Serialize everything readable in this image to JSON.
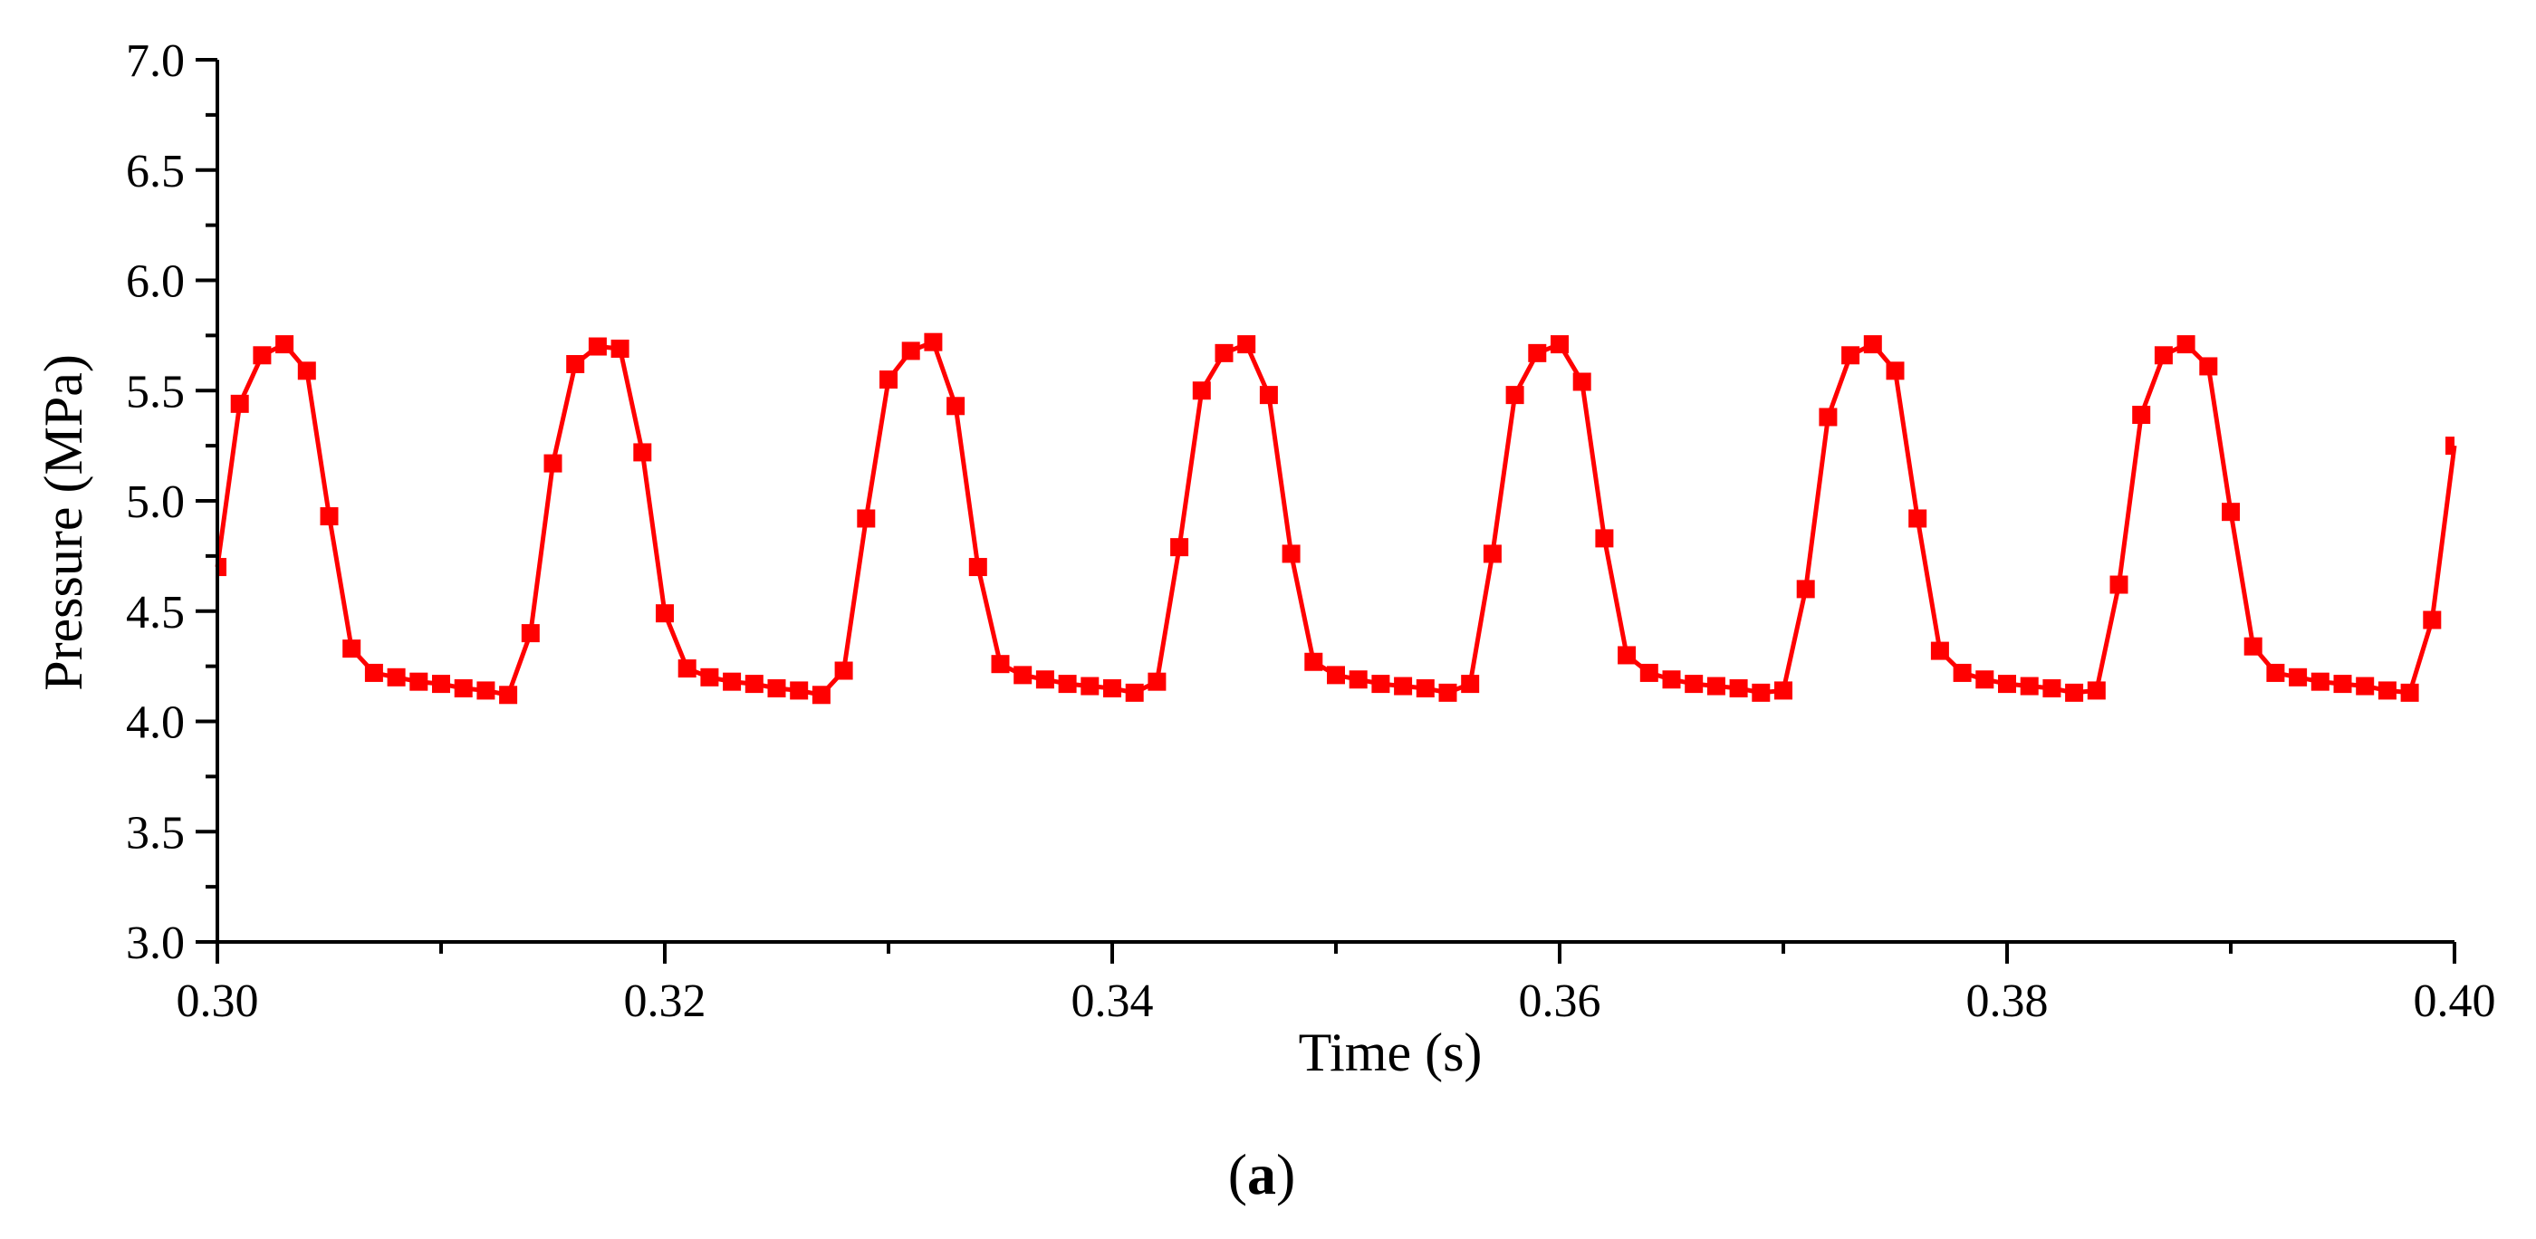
{
  "chart_data": {
    "type": "line",
    "title": "",
    "xlabel": "Time (s)",
    "ylabel": "Pressure (MPa)",
    "caption": {
      "open": "(",
      "letter": "a",
      "close": ")"
    },
    "xlim": [
      0.3,
      0.4
    ],
    "ylim": [
      3.0,
      7.0
    ],
    "x_ticks": [
      0.3,
      0.32,
      0.34,
      0.36,
      0.38,
      0.4
    ],
    "x_tick_labels": [
      "0.30",
      "0.32",
      "0.34",
      "0.36",
      "0.38",
      "0.40"
    ],
    "y_ticks": [
      3.0,
      3.5,
      4.0,
      4.5,
      5.0,
      5.5,
      6.0,
      6.5,
      7.0
    ],
    "y_tick_labels": [
      "3.0",
      "3.5",
      "4.0",
      "4.5",
      "5.0",
      "5.5",
      "6.0",
      "6.5",
      "7.0"
    ],
    "colors": {
      "series": "#ff0000",
      "axis": "#000000"
    },
    "legend": "none",
    "grid": false,
    "series": [
      {
        "name": "Pressure",
        "marker": "square",
        "x": [
          0.3,
          0.301,
          0.302,
          0.303,
          0.304,
          0.305,
          0.306,
          0.307,
          0.308,
          0.309,
          0.31,
          0.311,
          0.312,
          0.313,
          0.314,
          0.315,
          0.316,
          0.317,
          0.318,
          0.319,
          0.32,
          0.321,
          0.322,
          0.323,
          0.324,
          0.325,
          0.326,
          0.327,
          0.328,
          0.329,
          0.33,
          0.331,
          0.332,
          0.333,
          0.334,
          0.335,
          0.336,
          0.337,
          0.338,
          0.339,
          0.34,
          0.341,
          0.342,
          0.343,
          0.344,
          0.345,
          0.346,
          0.347,
          0.348,
          0.349,
          0.35,
          0.351,
          0.352,
          0.353,
          0.354,
          0.355,
          0.356,
          0.357,
          0.358,
          0.359,
          0.36,
          0.361,
          0.362,
          0.363,
          0.364,
          0.365,
          0.366,
          0.367,
          0.368,
          0.369,
          0.37,
          0.371,
          0.372,
          0.373,
          0.374,
          0.375,
          0.376,
          0.377,
          0.378,
          0.379,
          0.38,
          0.381,
          0.382,
          0.383,
          0.384,
          0.385,
          0.386,
          0.387,
          0.388,
          0.389,
          0.39,
          0.391,
          0.392,
          0.393,
          0.394,
          0.395,
          0.396,
          0.397,
          0.398,
          0.399,
          0.4
        ],
        "y": [
          4.7,
          5.44,
          5.66,
          5.71,
          5.59,
          4.93,
          4.33,
          4.22,
          4.2,
          4.18,
          4.17,
          4.15,
          4.14,
          4.12,
          4.4,
          5.17,
          5.62,
          5.7,
          5.69,
          5.22,
          4.49,
          4.24,
          4.2,
          4.18,
          4.17,
          4.15,
          4.14,
          4.12,
          4.23,
          4.92,
          5.55,
          5.68,
          5.72,
          5.43,
          4.7,
          4.26,
          4.21,
          4.19,
          4.17,
          4.16,
          4.15,
          4.13,
          4.18,
          4.79,
          5.5,
          5.67,
          5.71,
          5.48,
          4.76,
          4.27,
          4.21,
          4.19,
          4.17,
          4.16,
          4.15,
          4.13,
          4.17,
          4.76,
          5.48,
          5.67,
          5.71,
          5.54,
          4.83,
          4.3,
          4.22,
          4.19,
          4.17,
          4.16,
          4.15,
          4.13,
          4.14,
          4.6,
          5.38,
          5.66,
          5.71,
          5.59,
          4.92,
          4.32,
          4.22,
          4.19,
          4.17,
          4.16,
          4.15,
          4.13,
          4.14,
          4.62,
          5.39,
          5.66,
          5.71,
          5.61,
          4.95,
          4.34,
          4.22,
          4.2,
          4.18,
          4.17,
          4.16,
          4.14,
          4.13,
          4.46,
          5.25
        ]
      }
    ]
  }
}
